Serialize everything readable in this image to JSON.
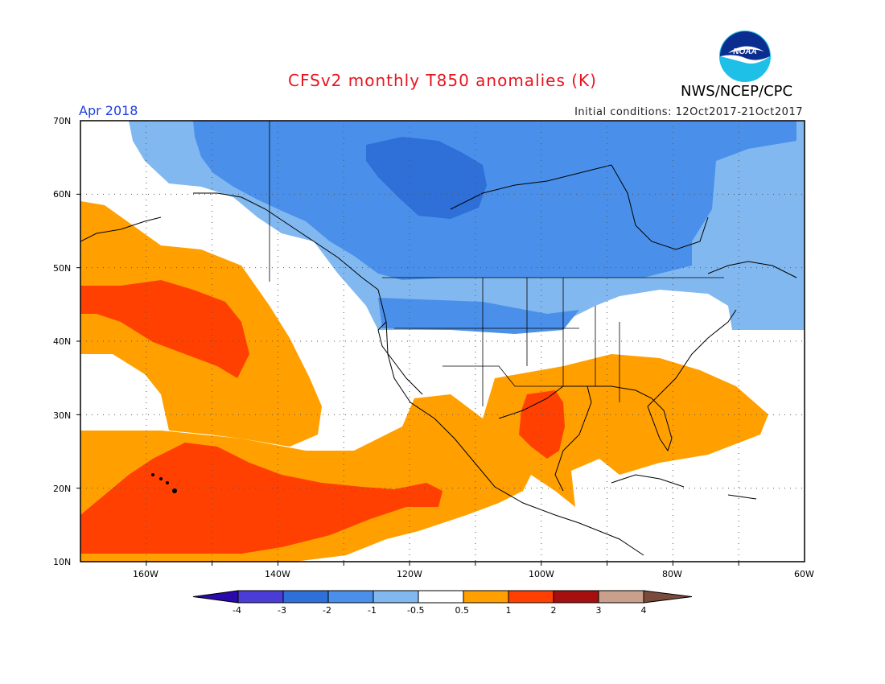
{
  "title": "CFSv2 monthly T850 anomalies (K)",
  "agency": "NWS/NCEP/CPC",
  "logo_text": "NOAA",
  "valid_month": "Apr 2018",
  "initial_conditions": "Initial conditions: 12Oct2017-21Oct2017",
  "map": {
    "lat_labels": [
      "70N",
      "60N",
      "50N",
      "40N",
      "30N",
      "20N",
      "10N"
    ],
    "lon_labels": [
      "160W",
      "140W",
      "120W",
      "100W",
      "80W",
      "60W"
    ],
    "extent": {
      "lon_min": -170,
      "lon_max": -60,
      "lat_min": 10,
      "lat_max": 70
    },
    "grid_spacing_deg": 10
  },
  "colorbar": {
    "labels": [
      "-4",
      "-3",
      "-2",
      "-1",
      "-0.5",
      "0.5",
      "1",
      "2",
      "3",
      "4"
    ],
    "colors": [
      "#2a0aa8",
      "#4a3dd6",
      "#2e6fd8",
      "#4a90ea",
      "#82b8f0",
      "#ffffff",
      "#ffa000",
      "#ff4000",
      "#a50f0f",
      "#c8a08c",
      "#7a4b3a"
    ]
  },
  "anomaly_fields": [
    {
      "level": "-2 to -1",
      "color": "#4a90ea",
      "region": "Alaska, Canada, northern US"
    },
    {
      "level": "-3 to -2",
      "color": "#2e6fd8",
      "region": "Northwest Territories / Hudson Bay"
    },
    {
      "level": "-1 to -0.5",
      "color": "#82b8f0",
      "region": "Gulf of Alaska, eastern Canada"
    },
    {
      "level": "0.5 to 1",
      "color": "#ffa000",
      "region": "NE Pacific, southern US, Mexico"
    },
    {
      "level": "1 to 2",
      "color": "#ff4000",
      "region": "subtropical Pacific, Texas"
    }
  ]
}
